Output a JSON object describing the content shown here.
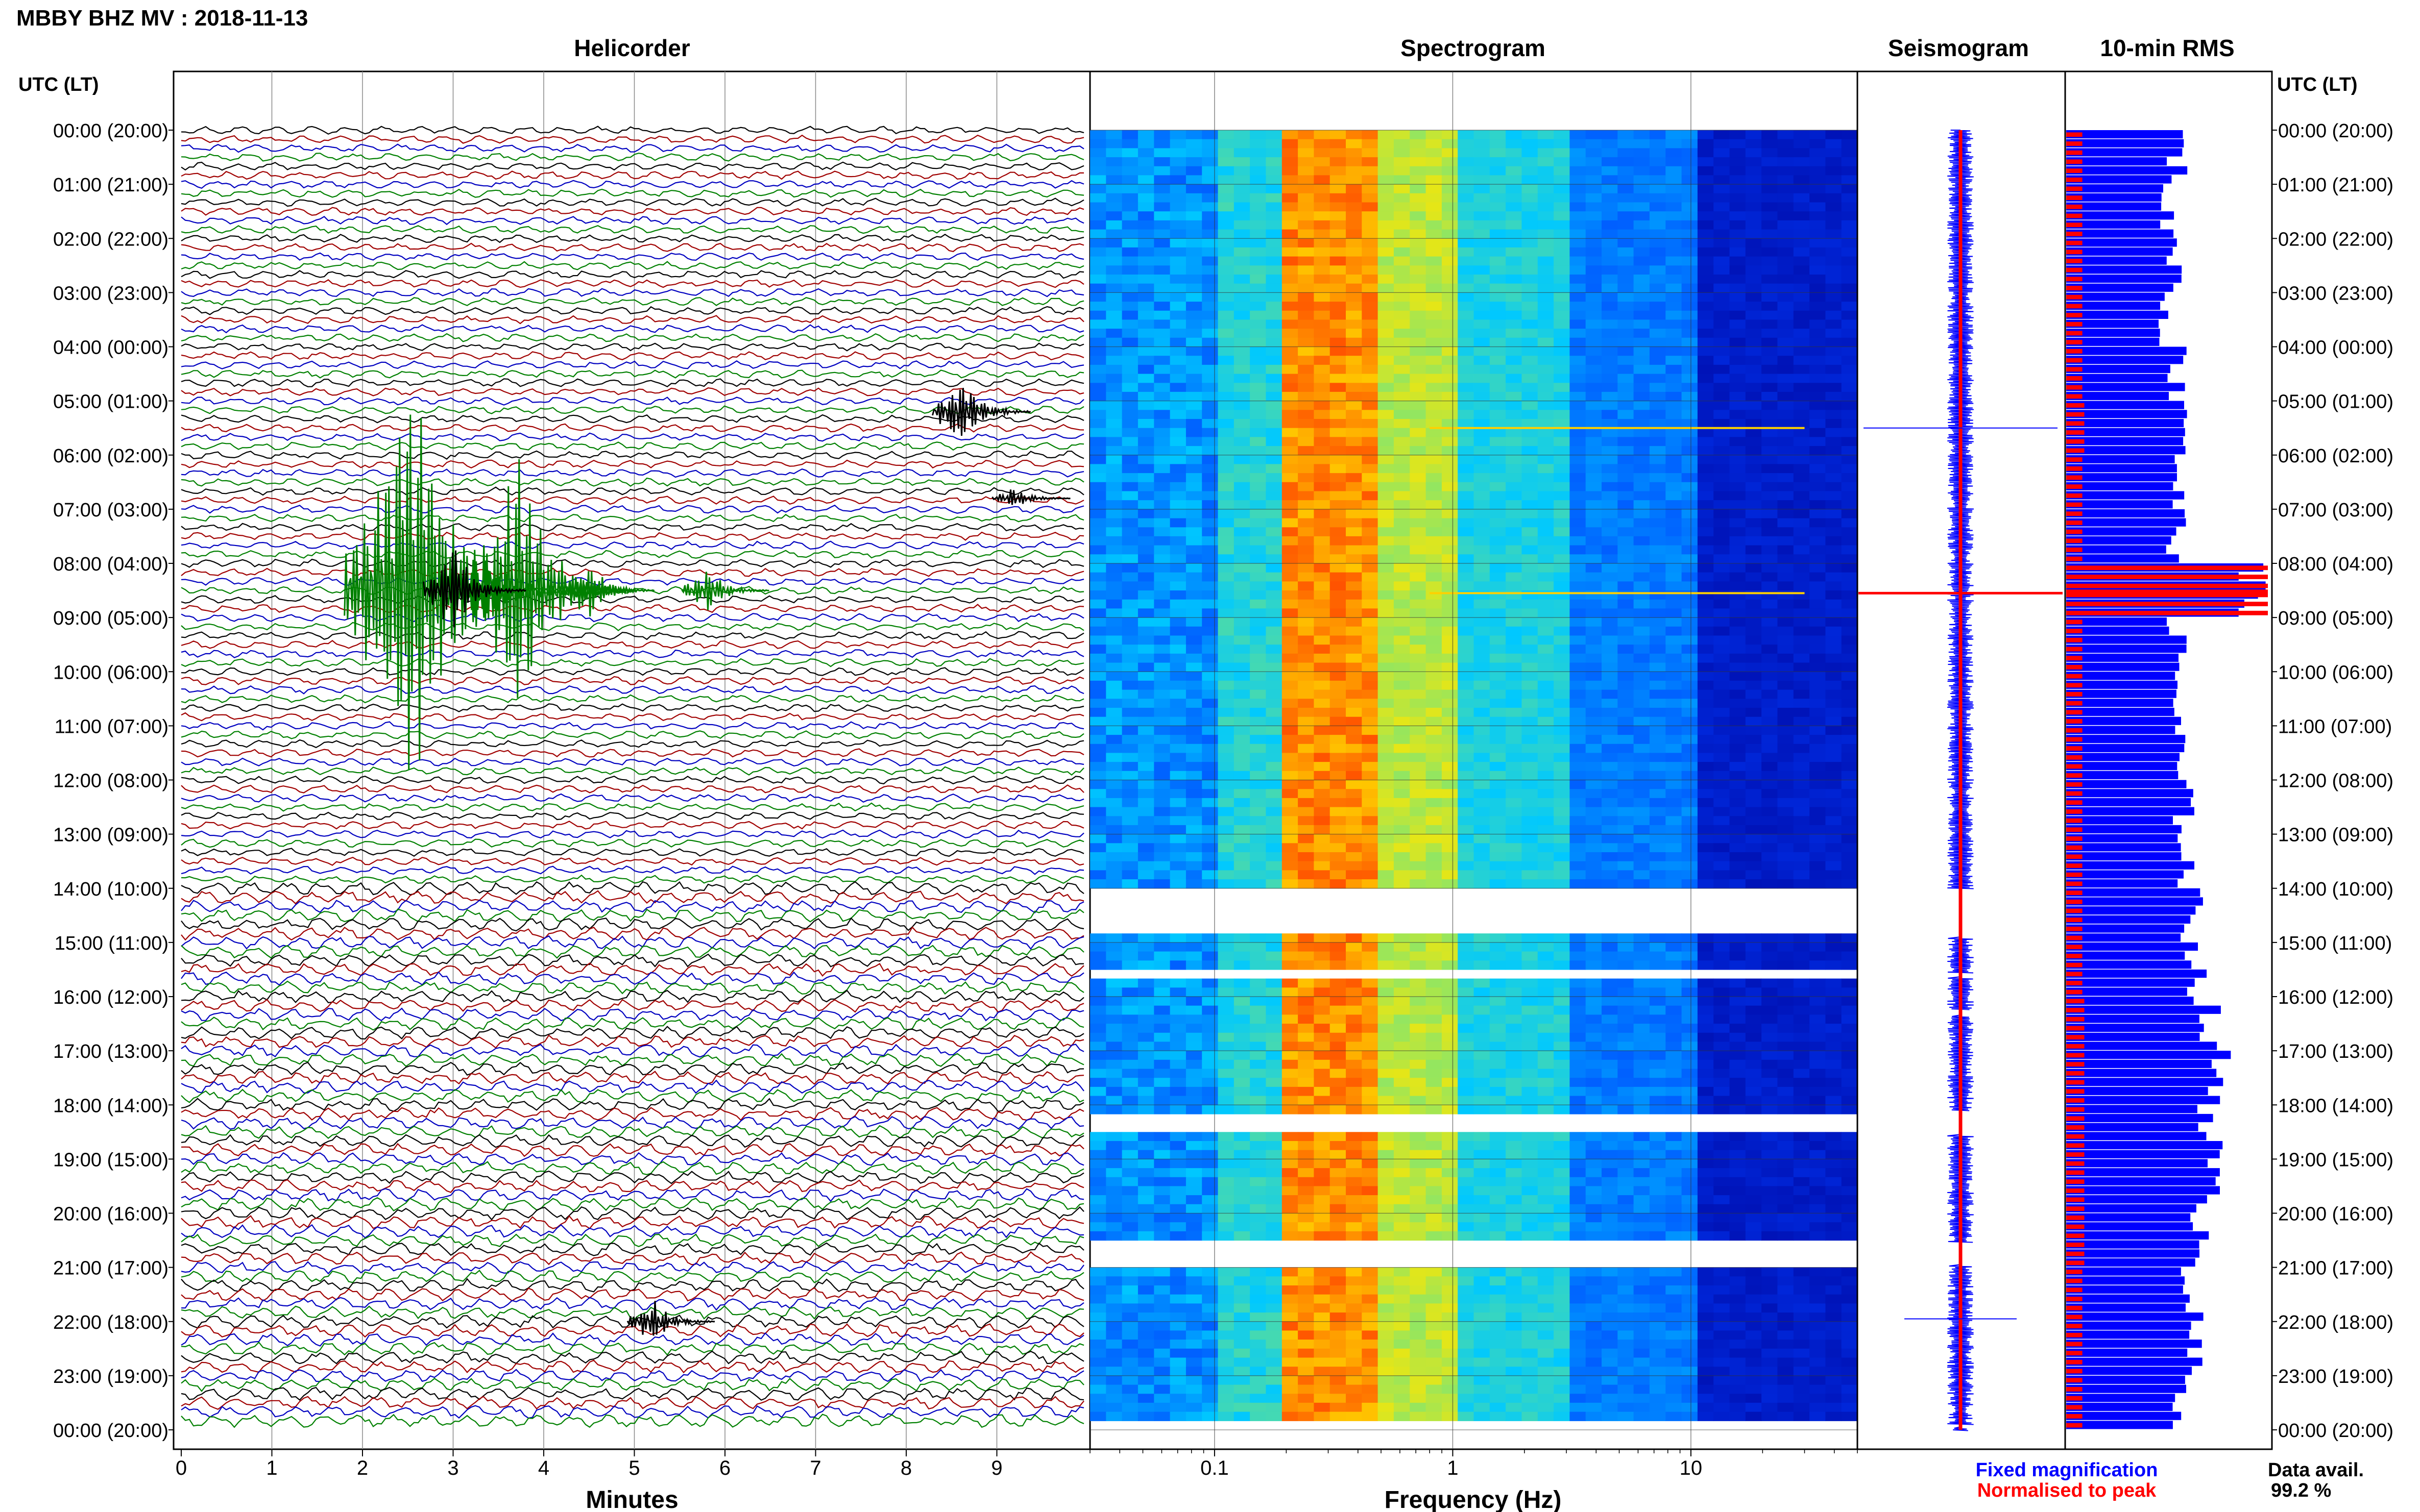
{
  "header": {
    "station_title": "MBBY BHZ MV : 2018-11-13"
  },
  "panels": {
    "helicorder": "Helicorder",
    "spectrogram": "Spectrogram",
    "seismogram": "Seismogram",
    "rms": "10-min RMS"
  },
  "time_axis_label": "UTC (LT)",
  "time_labels": [
    "00:00 (20:00)",
    "01:00 (21:00)",
    "02:00 (22:00)",
    "03:00 (23:00)",
    "04:00 (00:00)",
    "05:00 (01:00)",
    "06:00 (02:00)",
    "07:00 (03:00)",
    "08:00 (04:00)",
    "09:00 (05:00)",
    "10:00 (06:00)",
    "11:00 (07:00)",
    "12:00 (08:00)",
    "13:00 (09:00)",
    "14:00 (10:00)",
    "15:00 (11:00)",
    "16:00 (12:00)",
    "17:00 (13:00)",
    "18:00 (14:00)",
    "19:00 (15:00)",
    "20:00 (16:00)",
    "21:00 (17:00)",
    "22:00 (18:00)",
    "23:00 (19:00)",
    "00:00 (20:00)"
  ],
  "x_axes": {
    "minutes_label": "Minutes",
    "minutes_ticks": [
      "0",
      "1",
      "2",
      "3",
      "4",
      "5",
      "6",
      "7",
      "8",
      "9"
    ],
    "frequency_label": "Frequency (Hz)",
    "frequency_ticks": [
      "0.1",
      "1",
      "10"
    ]
  },
  "legend": {
    "fixed": "Fixed magnification",
    "normalised": "Normalised to peak",
    "fixed_color": "#0000ff",
    "normalised_color": "#ff0000"
  },
  "data_availability": {
    "label": "Data avail.",
    "value": "99.2 %"
  },
  "colors": {
    "trace_cycle": [
      "#000000",
      "#a00000",
      "#0000c0",
      "#008000"
    ],
    "rms_fixed": "#0000ff",
    "rms_normalised": "#ff0000",
    "spectrogram_low": "#0000a0",
    "spectrogram_high": "#ff3000"
  },
  "chart_data": [
    {
      "type": "line",
      "title": "Helicorder",
      "xlabel": "Minutes",
      "ylabel": "UTC (LT)",
      "xlim": [
        0,
        10
      ],
      "ylim": [
        0,
        24
      ],
      "rows_per_hour": 6,
      "events": [
        {
          "time_h": 5.2,
          "minute": 8.6,
          "amplitude": 5,
          "trace_color": "#000000"
        },
        {
          "time_h": 6.8,
          "minute": 9.2,
          "amplitude": 1.5,
          "trace_color": "#000000"
        },
        {
          "time_h": 8.5,
          "minute": 2.5,
          "amplitude": 28,
          "trace_color": "#008000"
        },
        {
          "time_h": 8.5,
          "minute": 3.7,
          "amplitude": 18,
          "trace_color": "#008000"
        },
        {
          "time_h": 8.5,
          "minute": 3.0,
          "amplitude": 6,
          "trace_color": "#000000"
        },
        {
          "time_h": 8.5,
          "minute": 4.5,
          "amplitude": 4,
          "trace_color": "#008000"
        },
        {
          "time_h": 8.5,
          "minute": 5.8,
          "amplitude": 3,
          "trace_color": "#008000"
        },
        {
          "time_h": 22.0,
          "minute": 5.2,
          "amplitude": 3,
          "trace_color": "#000000"
        }
      ]
    },
    {
      "type": "heatmap",
      "title": "Spectrogram",
      "xlabel": "Frequency (Hz)",
      "x_scale": "log",
      "xlim": [
        0.03,
        50
      ],
      "ylim": [
        0,
        24
      ],
      "dominant_band_hz": [
        0.2,
        0.5
      ],
      "data_gaps_h": [
        [
          14.0,
          14.9
        ],
        [
          15.55,
          15.65
        ],
        [
          16.25,
          16.35
        ],
        [
          18.1,
          18.55
        ],
        [
          20.55,
          20.95
        ],
        [
          23.9,
          23.97
        ]
      ],
      "transient_h": [
        5.5,
        8.55
      ]
    },
    {
      "type": "line",
      "title": "Seismogram",
      "ylim": [
        0,
        24
      ],
      "spikes_h": [
        5.5,
        8.55,
        21.95
      ]
    },
    {
      "type": "bar",
      "title": "10-min RMS",
      "ylim": [
        0,
        24
      ],
      "interval_minutes": 10,
      "series": [
        {
          "name": "Fixed magnification",
          "hourly_relative_level": [
            0.55,
            0.5,
            0.55,
            0.5,
            0.55,
            0.6,
            0.55,
            0.55,
            0.9,
            0.55,
            0.55,
            0.55,
            0.58,
            0.6,
            0.62,
            0.65,
            0.7,
            0.75,
            0.72,
            0.7,
            0.68,
            0.62,
            0.62,
            0.58
          ]
        },
        {
          "name": "Normalised to peak",
          "hourly_relative_level": [
            0.08,
            0.08,
            0.08,
            0.08,
            0.08,
            0.09,
            0.08,
            0.08,
            1.0,
            0.08,
            0.08,
            0.08,
            0.08,
            0.08,
            0.08,
            0.08,
            0.09,
            0.09,
            0.09,
            0.09,
            0.09,
            0.08,
            0.08,
            0.08
          ]
        }
      ]
    }
  ]
}
